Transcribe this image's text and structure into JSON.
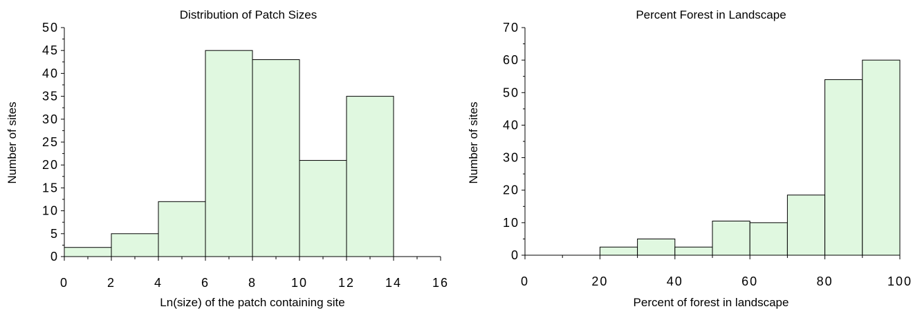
{
  "chart_data": [
    {
      "type": "bar",
      "subtype": "histogram",
      "title": "Distribution of Patch Sizes",
      "xlabel": "Ln(size) of the patch containing site",
      "ylabel": "Number of sites",
      "bin_edges": [
        0,
        2,
        4,
        6,
        8,
        10,
        12,
        14
      ],
      "values": [
        2,
        5,
        12,
        45,
        43,
        21,
        35
      ],
      "xlim": [
        0,
        16
      ],
      "ylim": [
        0,
        50
      ],
      "xticks": [
        0,
        2,
        4,
        6,
        8,
        10,
        12,
        14,
        16
      ],
      "xtick_labels": [
        "0",
        "2",
        "4",
        "6",
        "8",
        "10",
        "12",
        "14",
        "16"
      ],
      "yticks": [
        0,
        5,
        10,
        15,
        20,
        25,
        30,
        35,
        40,
        45,
        50
      ],
      "ytick_labels": [
        "0",
        "5",
        "10",
        "15",
        "20",
        "25",
        "30",
        "35",
        "40",
        "45",
        "50"
      ],
      "bar_color": "#e0f8e0",
      "grid": false,
      "legend": "none"
    },
    {
      "type": "bar",
      "subtype": "histogram",
      "title": "Percent Forest in Landscape",
      "xlabel": "Percent of forest in landscape",
      "ylabel": "Number of sites",
      "bin_edges": [
        0,
        10,
        20,
        30,
        40,
        50,
        60,
        70,
        80,
        90,
        100
      ],
      "values": [
        0,
        0,
        2.5,
        5,
        2.5,
        10.5,
        10,
        18.5,
        54,
        60
      ],
      "xlim": [
        0,
        100
      ],
      "ylim": [
        0,
        70
      ],
      "xticks": [
        0,
        20,
        40,
        60,
        80,
        100
      ],
      "xtick_labels": [
        "0",
        "20",
        "40",
        "60",
        "80",
        "100"
      ],
      "yticks": [
        0,
        10,
        20,
        30,
        40,
        50,
        60,
        70
      ],
      "ytick_labels": [
        "0",
        "10",
        "20",
        "30",
        "40",
        "50",
        "60",
        "70"
      ],
      "bar_color": "#e0f8e0",
      "grid": false,
      "legend": "none"
    }
  ]
}
